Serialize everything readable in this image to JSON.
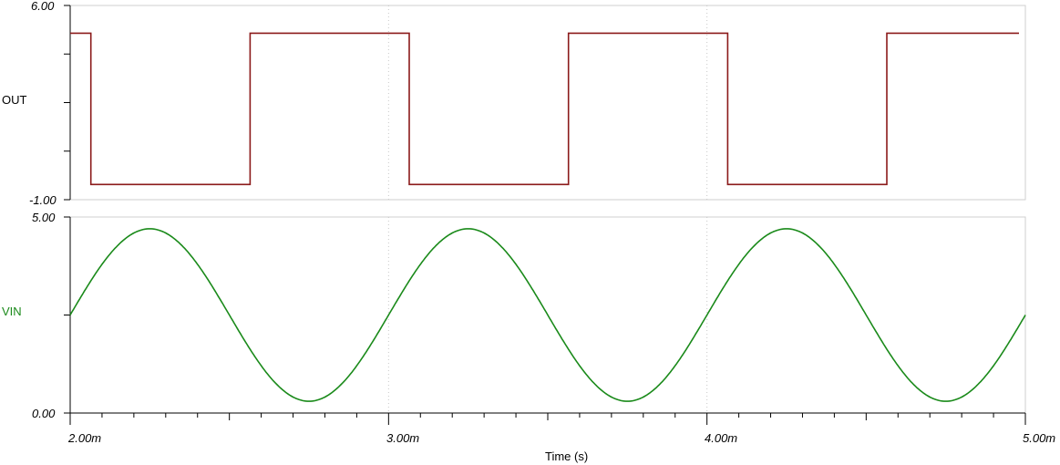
{
  "chart_data": [
    {
      "type": "line",
      "series": [
        {
          "name": "OUT",
          "color": "#8b1a1a",
          "x": [
            2.0,
            2.065,
            2.065,
            2.565,
            2.565,
            3.065,
            3.065,
            3.565,
            3.565,
            4.065,
            4.065,
            4.565,
            4.565,
            4.98
          ],
          "y": [
            5.0,
            5.0,
            -0.45,
            -0.45,
            5.0,
            5.0,
            -0.45,
            -0.45,
            5.0,
            5.0,
            -0.45,
            -0.45,
            5.0,
            5.0
          ]
        }
      ],
      "ylim": [
        -1.0,
        6.0
      ],
      "y_ticks_labeled": [
        "6.00",
        "-1.00"
      ],
      "xlim": [
        2.0,
        5.0
      ],
      "grid": "dotted vertical at each labeled x tick"
    },
    {
      "type": "line",
      "series": [
        {
          "name": "VIN",
          "color": "#1a8a1a",
          "function": "sine",
          "frequency_per_ms": 1,
          "offset": 2.5,
          "amplitude": 2.2,
          "x_start": 2.0,
          "x_end": 5.0
        }
      ],
      "ylim": [
        0.0,
        5.0
      ],
      "y_ticks_labeled": [
        "5.00",
        "0.00"
      ],
      "xlim": [
        2.0,
        5.0
      ],
      "x_ticks": [
        "2.00m",
        "3.00m",
        "4.00m",
        "5.00m"
      ],
      "xlabel": "Time (s)",
      "grid": "dotted vertical at each labeled x tick"
    }
  ]
}
